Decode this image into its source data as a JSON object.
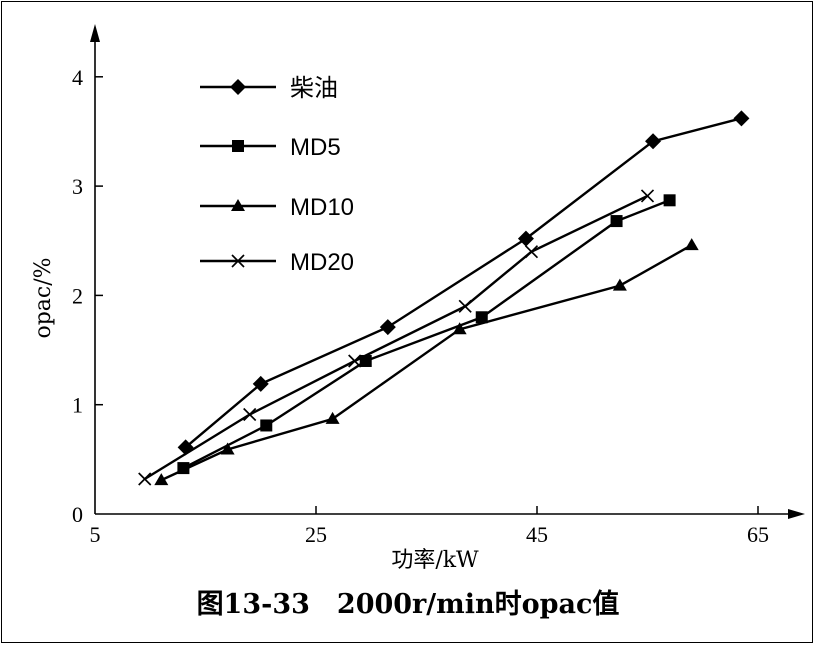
{
  "caption": "图13-33　2000r/min时opac值",
  "chart_data": {
    "type": "line",
    "title": "",
    "xlabel": "功率/kW",
    "ylabel": "opac/%",
    "xlim": [
      5,
      70
    ],
    "ylim": [
      0,
      4.5
    ],
    "xticks": [
      5,
      25,
      45,
      65
    ],
    "yticks": [
      0,
      1,
      2,
      3,
      4
    ],
    "legend_position": "top-left",
    "grid": false,
    "series": [
      {
        "name": "柴油",
        "marker": "diamond",
        "points": [
          [
            13.2,
            0.61
          ],
          [
            20.0,
            1.19
          ],
          [
            31.5,
            1.71
          ],
          [
            44.0,
            2.52
          ],
          [
            55.5,
            3.41
          ],
          [
            63.5,
            3.62
          ]
        ]
      },
      {
        "name": "MD5",
        "marker": "square",
        "points": [
          [
            13.0,
            0.42
          ],
          [
            20.5,
            0.81
          ],
          [
            29.5,
            1.4
          ],
          [
            40.0,
            1.8
          ],
          [
            52.2,
            2.68
          ],
          [
            57.0,
            2.87
          ]
        ]
      },
      {
        "name": "MD10",
        "marker": "triangle",
        "points": [
          [
            11.0,
            0.31
          ],
          [
            17.0,
            0.59
          ],
          [
            26.5,
            0.87
          ],
          [
            38.0,
            1.69
          ],
          [
            52.5,
            2.09
          ],
          [
            59.0,
            2.46
          ]
        ]
      },
      {
        "name": "MD20",
        "marker": "x",
        "points": [
          [
            9.5,
            0.32
          ],
          [
            19.0,
            0.91
          ],
          [
            28.5,
            1.4
          ],
          [
            38.5,
            1.9
          ],
          [
            44.5,
            2.4
          ],
          [
            55.0,
            2.91
          ]
        ]
      }
    ]
  }
}
